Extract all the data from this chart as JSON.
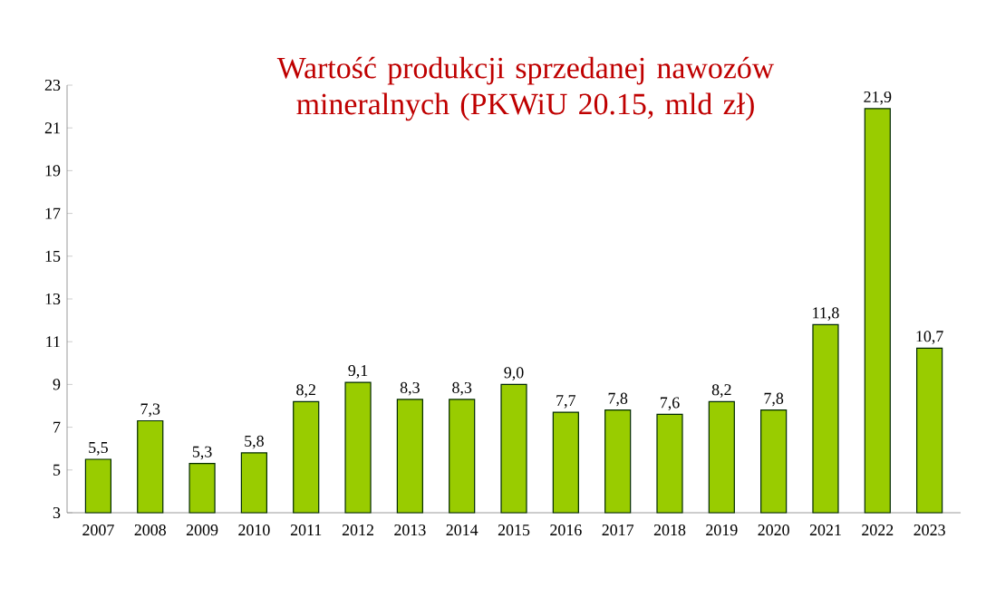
{
  "chart_data": {
    "type": "bar",
    "title": "Wartość produkcji sprzedanej nawozów mineralnych (PKWiU 20.15, mld zł)",
    "categories": [
      "2007",
      "2008",
      "2009",
      "2010",
      "2011",
      "2012",
      "2013",
      "2014",
      "2015",
      "2016",
      "2017",
      "2018",
      "2019",
      "2020",
      "2021",
      "2022",
      "2023"
    ],
    "values": [
      5.5,
      7.3,
      5.3,
      5.8,
      8.2,
      9.1,
      8.3,
      8.3,
      9.0,
      7.7,
      7.8,
      7.6,
      8.2,
      7.8,
      11.8,
      21.9,
      10.7
    ],
    "value_labels": [
      "5,5",
      "7,3",
      "5,3",
      "5,8",
      "8,2",
      "9,1",
      "8,3",
      "8,3",
      "9,0",
      "7,7",
      "7,8",
      "7,6",
      "8,2",
      "7,8",
      "11,8",
      "21,9",
      "10,7"
    ],
    "color": "#99cc00",
    "ylim": [
      3,
      23
    ],
    "yticks": [
      3,
      5,
      7,
      9,
      11,
      13,
      15,
      17,
      19,
      21,
      23
    ]
  }
}
